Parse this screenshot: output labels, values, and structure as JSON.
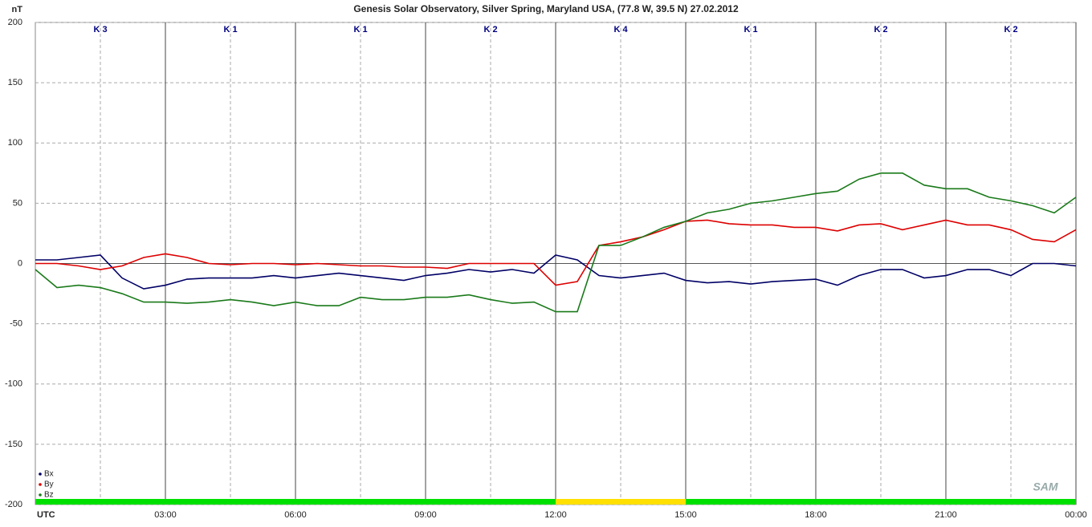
{
  "chart_data": {
    "type": "line",
    "title": "Genesis Solar Observatory, Silver Spring, Maryland USA, (77.8 W, 39.5 N)  27.02.2012",
    "ylabel": "nT",
    "xlabel": "UTC",
    "logo": "SAM",
    "x": [
      0,
      0.5,
      1,
      1.5,
      2,
      2.5,
      3,
      3.5,
      4,
      4.5,
      5,
      5.5,
      6,
      6.5,
      7,
      7.5,
      8,
      8.5,
      9,
      9.5,
      10,
      10.5,
      11,
      11.5,
      12,
      12.5,
      13,
      13.5,
      14,
      14.5,
      15,
      15.5,
      16,
      16.5,
      17,
      17.5,
      18,
      18.5,
      19,
      19.5,
      20,
      20.5,
      21,
      21.5,
      22,
      22.5,
      23,
      23.5,
      24
    ],
    "series": [
      {
        "name": "Bx",
        "color": "#000066",
        "values": [
          3,
          3,
          5,
          7,
          -12,
          -21,
          -18,
          -13,
          -12,
          -12,
          -12,
          -10,
          -12,
          -10,
          -8,
          -10,
          -12,
          -14,
          -10,
          -8,
          -5,
          -7,
          -5,
          -8,
          7,
          3,
          -10,
          -12,
          -10,
          -8,
          -14,
          -16,
          -15,
          -17,
          -15,
          -14,
          -13,
          -18,
          -10,
          -5,
          -5,
          -12,
          -10,
          -5,
          -5,
          -10,
          0,
          0,
          -2
        ]
      },
      {
        "name": "By",
        "color": "#dd0000",
        "values": [
          0,
          0,
          -2,
          -5,
          -2,
          5,
          8,
          5,
          0,
          -1,
          0,
          0,
          -1,
          0,
          -1,
          -2,
          -2,
          -3,
          -3,
          -4,
          0,
          0,
          0,
          0,
          -18,
          -15,
          15,
          18,
          22,
          28,
          35,
          36,
          33,
          32,
          32,
          30,
          30,
          27,
          32,
          33,
          28,
          32,
          36,
          32,
          32,
          28,
          20,
          18,
          28
        ]
      },
      {
        "name": "Bz",
        "color": "#1a7a1a",
        "values": [
          -5,
          -20,
          -18,
          -20,
          -25,
          -32,
          -32,
          -33,
          -32,
          -30,
          -32,
          -35,
          -32,
          -35,
          -35,
          -28,
          -30,
          -30,
          -28,
          -28,
          -26,
          -30,
          -33,
          -32,
          -40,
          -40,
          15,
          15,
          22,
          30,
          35,
          42,
          45,
          50,
          52,
          55,
          58,
          60,
          70,
          75,
          75,
          65,
          62,
          62,
          55,
          52,
          48,
          42,
          55
        ]
      }
    ],
    "xlim": [
      0,
      24
    ],
    "xticks": [
      {
        "value": 3,
        "label": "03:00"
      },
      {
        "value": 6,
        "label": "06:00"
      },
      {
        "value": 9,
        "label": "09:00"
      },
      {
        "value": 12,
        "label": "12:00"
      },
      {
        "value": 15,
        "label": "15:00"
      },
      {
        "value": 18,
        "label": "18:00"
      },
      {
        "value": 21,
        "label": "21:00"
      },
      {
        "value": 24,
        "label": "00:00"
      }
    ],
    "ylim": [
      -200,
      200
    ],
    "yticks": [
      -200,
      -150,
      -100,
      -50,
      0,
      50,
      100,
      150,
      200
    ],
    "k_index": [
      "K 3",
      "K 1",
      "K 1",
      "K 2",
      "K 4",
      "K 1",
      "K 2",
      "K 2"
    ],
    "k_bar_colors": [
      "#00e000",
      "#00e000",
      "#00e000",
      "#00e000",
      "#ffe000",
      "#00e000",
      "#00e000",
      "#00e000"
    ],
    "grid": true,
    "legend": "lower left"
  }
}
